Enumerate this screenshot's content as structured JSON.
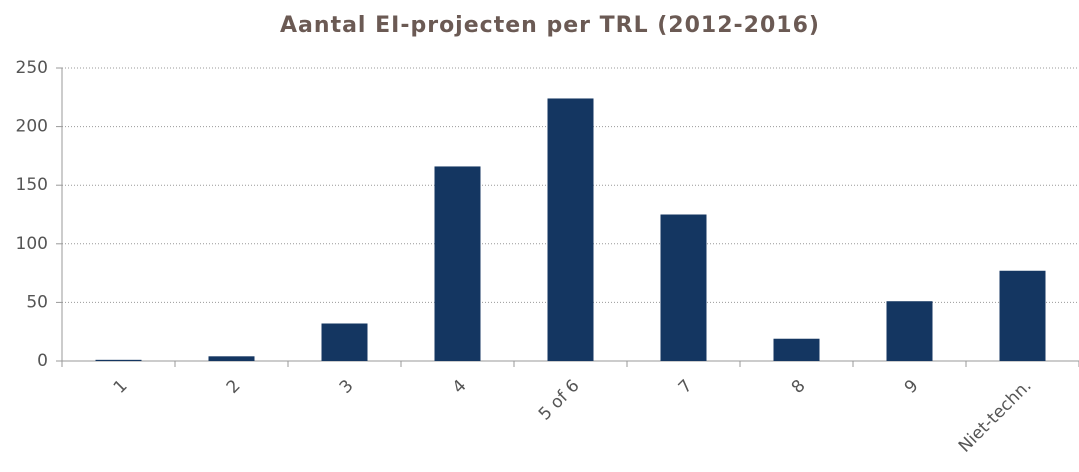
{
  "chart_data": {
    "type": "bar",
    "title": "Aantal EI-projecten per TRL (2012-2016)",
    "categories": [
      "1",
      "2",
      "3",
      "4",
      "5 of 6",
      "7",
      "8",
      "9",
      "Niet-techn."
    ],
    "values": [
      1,
      4,
      32,
      166,
      224,
      125,
      19,
      51,
      77
    ],
    "color": "#143661",
    "ylim": [
      0,
      250
    ],
    "yticks": [
      0,
      50,
      100,
      150,
      200,
      250
    ],
    "grid": true
  }
}
